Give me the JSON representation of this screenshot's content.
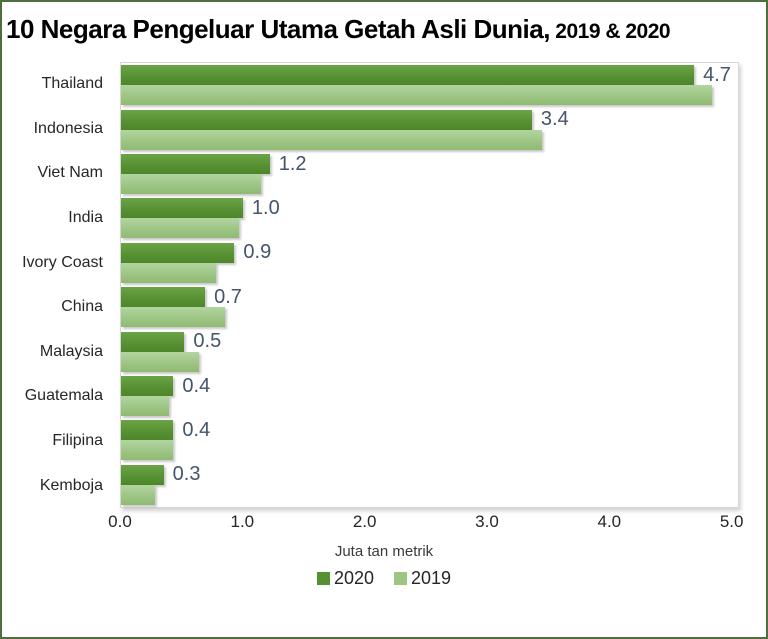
{
  "frame": {
    "border_color": "#4e6f3d",
    "background_color": "#ffffff"
  },
  "title": {
    "main": "10 Negara Pengeluar Utama Getah Asli Dunia,",
    "suffix": " 2019 & 2020"
  },
  "chart_data": {
    "type": "bar",
    "orientation": "horizontal",
    "title": "10 Negara Pengeluar Utama Getah Asli Dunia, 2019 & 2020",
    "categories": [
      "Thailand",
      "Indonesia",
      "Viet Nam",
      "India",
      "Ivory Coast",
      "China",
      "Malaysia",
      "Guatemala",
      "Filipina",
      "Kemboja"
    ],
    "series": [
      {
        "name": "2020",
        "color": "#569032",
        "values": [
          4.7,
          3.37,
          1.22,
          1.0,
          0.93,
          0.69,
          0.52,
          0.43,
          0.43,
          0.35
        ],
        "labels": [
          "4.7",
          "3.4",
          "1.2",
          "1.0",
          "0.9",
          "0.7",
          "0.5",
          "0.4",
          "0.4",
          "0.3"
        ]
      },
      {
        "name": "2019",
        "color": "#9cc482",
        "values": [
          4.85,
          3.45,
          1.15,
          0.97,
          0.78,
          0.85,
          0.64,
          0.39,
          0.43,
          0.28
        ]
      }
    ],
    "xlabel": "Juta tan metrik",
    "ylabel": "",
    "x_ticks": [
      "0.0",
      "1.0",
      "2.0",
      "3.0",
      "4.0",
      "5.0"
    ],
    "x_tick_values": [
      0,
      1,
      2,
      3,
      4,
      5
    ],
    "xlim": [
      0,
      5.06
    ],
    "grid": false,
    "legend_position": "bottom",
    "data_label_color": "#44546a"
  }
}
